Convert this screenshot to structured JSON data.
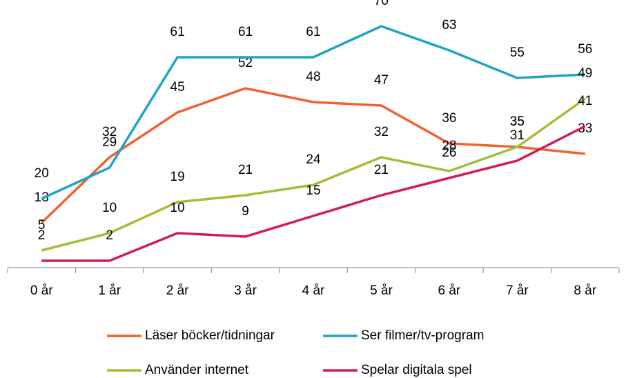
{
  "chart_data": {
    "type": "line",
    "categories": [
      "0 år",
      "1 år",
      "2 år",
      "3 år",
      "4 år",
      "5 år",
      "6 år",
      "7 år",
      "8 år"
    ],
    "series": [
      {
        "name": "Läser böcker/tidningar",
        "color": "#f0622e",
        "values": [
          13,
          32,
          45,
          52,
          48,
          47,
          36,
          35,
          33
        ]
      },
      {
        "name": "Ser filmer/tv-program",
        "color": "#1fa3c7",
        "values": [
          20,
          29,
          61,
          61,
          61,
          70,
          63,
          55,
          56
        ]
      },
      {
        "name": "Använder internet",
        "color": "#9dc135",
        "values": [
          5,
          10,
          19,
          21,
          24,
          32,
          28,
          35,
          49
        ]
      },
      {
        "name": "Spelar digitala spel",
        "color": "#d01e4e",
        "values": [
          2,
          2,
          10,
          9,
          15,
          21,
          26,
          31,
          41
        ]
      }
    ],
    "ylim": [
      0,
      77
    ]
  }
}
